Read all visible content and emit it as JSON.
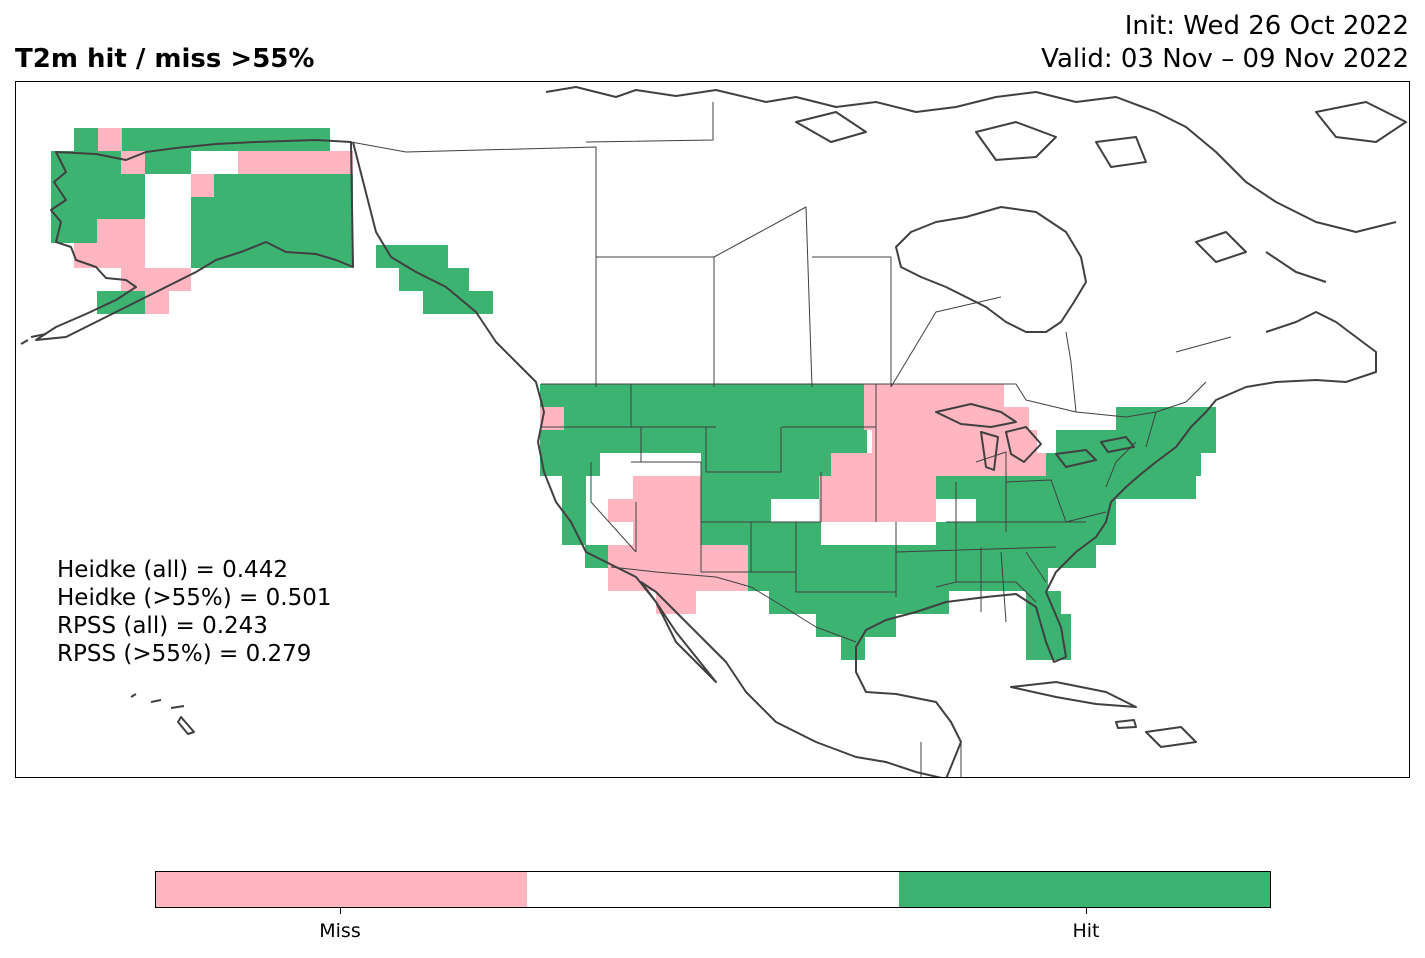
{
  "title": "T2m hit / miss  >55%",
  "init_line": "Init: Wed 26 Oct 2022",
  "valid_line": "Valid: 03 Nov – 09 Nov 2022",
  "stats": [
    "Heidke (all) = 0.442",
    "Heidke (>55%) = 0.501",
    "RPSS (all) = 0.243",
    "RPSS (>55%) = 0.279"
  ],
  "colors": {
    "miss": "#ffb6c1",
    "neutral": "#ffffff",
    "hit": "#3cb371",
    "coast": "#404040"
  },
  "legend": {
    "miss_label": "Miss",
    "hit_label": "Hit"
  }
}
